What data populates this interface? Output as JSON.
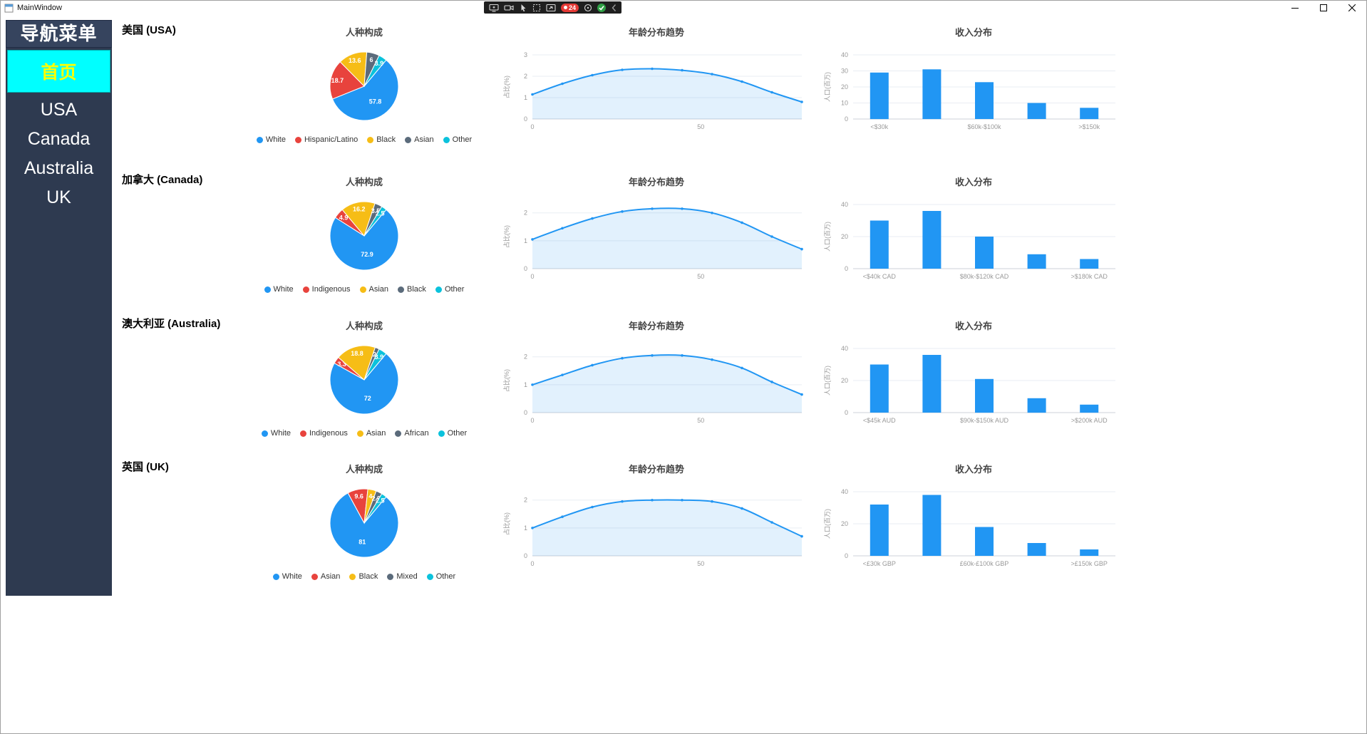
{
  "window": {
    "title": "MainWindow"
  },
  "titlebar": {
    "overlay": {
      "counter": "24"
    }
  },
  "sidebar": {
    "header": "导航菜单",
    "items": [
      {
        "label": "首页",
        "active": true
      },
      {
        "label": "USA",
        "active": false
      },
      {
        "label": "Canada",
        "active": false
      },
      {
        "label": "Australia",
        "active": false
      },
      {
        "label": "UK",
        "active": false
      }
    ],
    "colors": {
      "background": "#2e3a50",
      "active_bg": "#00ffff",
      "active_text": "#ffff00",
      "text": "#ffffff"
    }
  },
  "palette": {
    "blue": "#2196f3",
    "red": "#e8433d",
    "yellow": "#f6bd16",
    "gray": "#5b6b7b",
    "cyan": "#0bc2dc",
    "area_fill": "rgba(33,150,243,0.13)",
    "grid": "#e9edf3",
    "axis": "#ccd2da",
    "tick_text": "#999999"
  },
  "sections": [
    {
      "country": "美国 (USA)",
      "pie": {
        "title": "人种构成",
        "slices": [
          {
            "label": "White",
            "value": 57.8,
            "color": "#2196f3"
          },
          {
            "label": "Hispanic/Latino",
            "value": 18.7,
            "color": "#e8433d"
          },
          {
            "label": "Black",
            "value": 13.6,
            "color": "#f6bd16"
          },
          {
            "label": "Asian",
            "value": 6,
            "color": "#5b6b7b"
          },
          {
            "label": "Other",
            "value": 3.9,
            "color": "#0bc2dc"
          }
        ]
      },
      "line": {
        "title": "年龄分布趋势",
        "ylabel": "占比(%)",
        "ymax": 3,
        "yticks": [
          0,
          1,
          2,
          3
        ],
        "xticks": [
          {
            "label": "0",
            "pos": 0
          },
          {
            "label": "50",
            "pos": 0.625
          }
        ],
        "values": [
          1.15,
          1.65,
          2.05,
          2.3,
          2.35,
          2.28,
          2.1,
          1.75,
          1.25,
          0.8
        ]
      },
      "bar": {
        "title": "收入分布",
        "ylabel": "人口(百万)",
        "ymax": 40,
        "yticks": [
          0,
          10,
          20,
          30,
          40
        ],
        "xlabels": [
          "<$30k",
          "",
          "$60k-$100k",
          "",
          ">$150k"
        ],
        "values": [
          29,
          31,
          23,
          10,
          7
        ]
      }
    },
    {
      "country": "加拿大 (Canada)",
      "pie": {
        "title": "人种构成",
        "slices": [
          {
            "label": "White",
            "value": 72.9,
            "color": "#2196f3"
          },
          {
            "label": "Indigenous",
            "value": 4.9,
            "color": "#e8433d"
          },
          {
            "label": "Asian",
            "value": 16.2,
            "color": "#f6bd16"
          },
          {
            "label": "Black",
            "value": 3.5,
            "color": "#5b6b7b"
          },
          {
            "label": "Other",
            "value": 2.5,
            "color": "#0bc2dc"
          }
        ]
      },
      "line": {
        "title": "年龄分布趋势",
        "ylabel": "占比(%)",
        "ymax": 2.3,
        "yticks": [
          0,
          1,
          2
        ],
        "xticks": [
          {
            "label": "0",
            "pos": 0
          },
          {
            "label": "50",
            "pos": 0.625
          }
        ],
        "values": [
          1.05,
          1.45,
          1.8,
          2.05,
          2.15,
          2.15,
          2.0,
          1.65,
          1.15,
          0.7
        ]
      },
      "bar": {
        "title": "收入分布",
        "ylabel": "人口(百万)",
        "ymax": 40,
        "yticks": [
          0,
          20,
          40
        ],
        "xlabels": [
          "<$40k CAD",
          "",
          "$80k-$120k CAD",
          "",
          ">$180k CAD"
        ],
        "values": [
          30,
          36,
          20,
          9,
          6
        ]
      }
    },
    {
      "country": "澳大利亚 (Australia)",
      "pie": {
        "title": "人种构成",
        "slices": [
          {
            "label": "White",
            "value": 72,
            "color": "#2196f3"
          },
          {
            "label": "Indigenous",
            "value": 3.3,
            "color": "#e8433d"
          },
          {
            "label": "Asian",
            "value": 18.8,
            "color": "#f6bd16"
          },
          {
            "label": "African",
            "value": 2,
            "color": "#5b6b7b"
          },
          {
            "label": "Other",
            "value": 3.9,
            "color": "#0bc2dc"
          }
        ]
      },
      "line": {
        "title": "年龄分布趋势",
        "ylabel": "占比(%)",
        "ymax": 2.3,
        "yticks": [
          0,
          1,
          2
        ],
        "xticks": [
          {
            "label": "0",
            "pos": 0
          },
          {
            "label": "50",
            "pos": 0.625
          }
        ],
        "values": [
          1.0,
          1.35,
          1.7,
          1.95,
          2.05,
          2.05,
          1.9,
          1.6,
          1.1,
          0.65
        ]
      },
      "bar": {
        "title": "收入分布",
        "ylabel": "人口(百万)",
        "ymax": 40,
        "yticks": [
          0,
          20,
          40
        ],
        "xlabels": [
          "<$45k AUD",
          "",
          "$90k-$150k AUD",
          "",
          ">$200k AUD"
        ],
        "values": [
          30,
          36,
          21,
          9,
          5
        ]
      }
    },
    {
      "country": "英国 (UK)",
      "pie": {
        "title": "人种构成",
        "slices": [
          {
            "label": "White",
            "value": 81,
            "color": "#2196f3"
          },
          {
            "label": "Asian",
            "value": 9.6,
            "color": "#e8433d"
          },
          {
            "label": "Black",
            "value": 4,
            "color": "#f6bd16"
          },
          {
            "label": "Mixed",
            "value": 2.9,
            "color": "#5b6b7b"
          },
          {
            "label": "Other",
            "value": 2.5,
            "color": "#0bc2dc"
          }
        ]
      },
      "line": {
        "title": "年龄分布趋势",
        "ylabel": "占比(%)",
        "ymax": 2.3,
        "yticks": [
          0,
          1,
          2
        ],
        "xticks": [
          {
            "label": "0",
            "pos": 0
          },
          {
            "label": "50",
            "pos": 0.625
          }
        ],
        "values": [
          1.0,
          1.4,
          1.75,
          1.95,
          2.0,
          2.0,
          1.95,
          1.7,
          1.2,
          0.7
        ]
      },
      "bar": {
        "title": "收入分布",
        "ylabel": "人口(百万)",
        "ymax": 40,
        "yticks": [
          0,
          20,
          40
        ],
        "xlabels": [
          "<£30k GBP",
          "",
          "£60k-£100k GBP",
          "",
          ">£150k GBP"
        ],
        "values": [
          32,
          38,
          18,
          8,
          4
        ]
      }
    }
  ]
}
